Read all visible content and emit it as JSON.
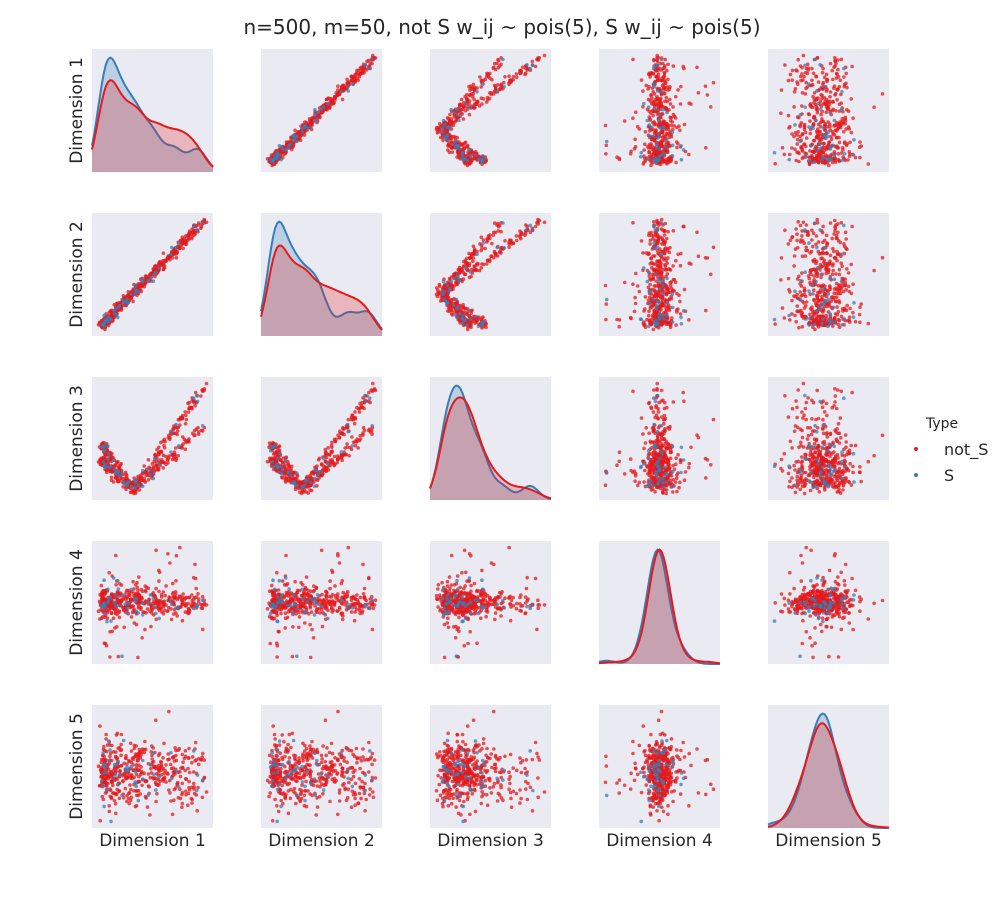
{
  "chart_data": {
    "type": "scatter",
    "subtype": "pairplot",
    "title": "n=500, m=50, not S w_ij ~ pois(5), S w_ij ~ pois(5)",
    "dimensions": [
      "Dimension 1",
      "Dimension 2",
      "Dimension 3",
      "Dimension 4",
      "Dimension 5"
    ],
    "diagonal": "kde",
    "ticks_visible": false,
    "grid": false,
    "legend": {
      "title": "Type",
      "position": "right",
      "entries": [
        {
          "name": "not_S",
          "color": "#e41a1c"
        },
        {
          "name": "S",
          "color": "#377eb8"
        }
      ]
    },
    "series": [
      {
        "name": "not_S",
        "color": "#e41a1c",
        "point_count_estimate": 450
      },
      {
        "name": "S",
        "color": "#377eb8",
        "point_count_estimate": 50
      }
    ],
    "colors": {
      "panel_background": "#eaeaf2",
      "not_S": "#e41a1c",
      "S": "#377eb8",
      "text": "#262626"
    }
  }
}
